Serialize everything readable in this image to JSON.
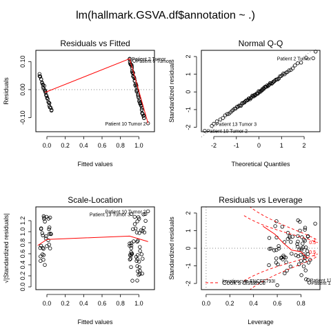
{
  "figure_title": "lm(hallmark.GSVA.df$annotation ~ .)",
  "colors": {
    "points": "#000000",
    "smooth": "#ff0000",
    "ref": "#808080",
    "cook": "#ff0000",
    "frame": "#000000"
  },
  "chart_data": [
    {
      "type": "scatter",
      "title": "Residuals vs Fitted",
      "xlabel": "Fitted values",
      "ylabel": "Residuals",
      "xlim": [
        -0.12,
        1.17
      ],
      "ylim": [
        -0.15,
        0.14
      ],
      "xticks": [
        0.0,
        0.2,
        0.4,
        0.6,
        0.8,
        1.0
      ],
      "xtick_labels": [
        "0.0",
        "0.2",
        "0.4",
        "0.6",
        "0.8",
        "1.0"
      ],
      "yticks": [
        -0.1,
        0.0,
        0.1
      ],
      "ytick_labels": [
        "-0.10",
        "0.00",
        "0.10"
      ],
      "ref_line": {
        "axis": "y",
        "value": 0
      },
      "smooth": [
        [
          -0.02,
          -0.01
        ],
        [
          0.9,
          0.11
        ],
        [
          1.1,
          -0.12
        ]
      ],
      "clusters": [
        {
          "x0": -0.08,
          "x1": 0.05,
          "y0": 0.055,
          "y1": -0.075,
          "n": 32
        },
        {
          "x0": 0.9,
          "x1": 1.06,
          "y0": 0.105,
          "y1": -0.105,
          "n": 50
        }
      ],
      "extra_points": [
        [
          0.9,
          0.11
        ],
        [
          1.1,
          -0.12
        ],
        [
          0.95,
          0.103
        ]
      ],
      "annotations": [
        {
          "text": "Patient 2 Tumor",
          "x": 0.9,
          "y": 0.11,
          "side": "right"
        },
        {
          "text": "Patient 6 Tumor",
          "x": 0.95,
          "y": 0.103,
          "side": "right"
        },
        {
          "text": "Patient 10 Tumor 2",
          "x": 1.1,
          "y": -0.12,
          "side": "left"
        }
      ]
    },
    {
      "type": "scatter",
      "title": "Normal Q-Q",
      "xlabel": "Theoretical Quantiles",
      "ylabel": "Standardized residuals",
      "xlim": [
        -2.55,
        2.7
      ],
      "ylim": [
        -2.25,
        2.35
      ],
      "xticks": [
        -2,
        -1,
        0,
        1,
        2
      ],
      "xtick_labels": [
        "-2",
        "-1",
        "0",
        "1",
        "2"
      ],
      "yticks": [
        -2,
        -1,
        0,
        1,
        2
      ],
      "ytick_labels": [
        "-2",
        "-1",
        "0",
        "1",
        "2"
      ],
      "ref_line": {
        "axis": "diag"
      },
      "qq": {
        "n": 82,
        "extremes": [
          [
            2.4,
            1.9
          ],
          [
            -2.4,
            -2.2
          ],
          [
            -2.0,
            -1.8
          ]
        ]
      },
      "annotations": [
        {
          "text": "Patient 2 Tumor",
          "x": 2.4,
          "y": 1.9,
          "side": "left"
        },
        {
          "text": "Patient 13 Tumor 3",
          "x": -2.0,
          "y": -1.8,
          "side": "right"
        },
        {
          "text": "Patient 10 Tumor 2",
          "x": -2.4,
          "y": -2.2,
          "side": "right"
        }
      ]
    },
    {
      "type": "scatter",
      "title": "Scale-Location",
      "xlabel": "Fitted values",
      "ylabel": "√|Standardized residuals|",
      "xlim": [
        -0.12,
        1.17
      ],
      "ylim": [
        -0.05,
        1.45
      ],
      "xticks": [
        0.0,
        0.2,
        0.4,
        0.6,
        0.8,
        1.0
      ],
      "xtick_labels": [
        "0.0",
        "0.2",
        "0.4",
        "0.6",
        "0.8",
        "1.0"
      ],
      "yticks": [
        0.0,
        0.2,
        0.4,
        0.6,
        0.8,
        1.0,
        1.2
      ],
      "ytick_labels": [
        "0.0",
        "0.2",
        "0.4",
        "0.6",
        "0.8",
        "1.0",
        "1.2"
      ],
      "smooth": [
        [
          -0.1,
          0.75
        ],
        [
          0.0,
          0.86
        ],
        [
          0.9,
          0.92
        ],
        [
          1.1,
          0.82
        ]
      ],
      "clusters": [
        {
          "x0": -0.08,
          "x1": 0.05,
          "ymin": 0.25,
          "ymax": 1.3,
          "n": 32
        },
        {
          "x0": 0.9,
          "x1": 1.08,
          "ymin": 0.1,
          "ymax": 1.32,
          "n": 50
        }
      ],
      "extra_points": [
        [
          1.1,
          1.37
        ],
        [
          1.07,
          1.32
        ],
        [
          0.92,
          1.32
        ]
      ],
      "annotations": [
        {
          "text": "Patient 10 Tumor 2",
          "x": 1.1,
          "y": 1.37,
          "side": "left"
        },
        {
          "text": "Patient 13 Tumor 3",
          "x": 0.93,
          "y": 1.32,
          "side": "left"
        }
      ]
    },
    {
      "type": "scatter",
      "title": "Residuals vs Leverage",
      "xlabel": "Leverage",
      "ylabel": "Standardized residuals",
      "xlim": [
        -0.04,
        0.96
      ],
      "ylim": [
        -2.35,
        2.35
      ],
      "xticks": [
        0.0,
        0.2,
        0.4,
        0.6,
        0.8
      ],
      "xtick_labels": [
        "0.0",
        "0.2",
        "0.4",
        "0.6",
        "0.8"
      ],
      "yticks": [
        -2,
        -1,
        0,
        1,
        2
      ],
      "ytick_labels": [
        "-2",
        "-1",
        "0",
        "1",
        "2"
      ],
      "ref_line": {
        "axis": "both",
        "value": 0
      },
      "smooth": [
        [
          0.48,
          1.25
        ],
        [
          0.58,
          0.8
        ],
        [
          0.65,
          0.3
        ],
        [
          0.72,
          -0.1
        ],
        [
          0.8,
          -0.2
        ],
        [
          0.86,
          -0.6
        ]
      ],
      "cloud": {
        "x0": 0.5,
        "x1": 0.88,
        "n": 70
      },
      "extra_points": [
        [
          0.6,
          -2.1
        ],
        [
          0.86,
          -1.8
        ],
        [
          0.87,
          -1.95
        ],
        [
          0.92,
          1.4
        ]
      ],
      "cook_contours": [
        {
          "level": 0.5,
          "label": "0.5"
        },
        {
          "level": 1.0,
          "label": "1"
        }
      ],
      "legend": "Cook's distance",
      "legend_position": "bottom-left",
      "annotations": [
        {
          "text": "keratinocyte ENCFF793I",
          "x": 0.6,
          "y": -1.85,
          "side": "left"
        },
        {
          "text": "Patient 13 Tumor 3",
          "x": 0.86,
          "y": -1.8,
          "side": "right"
        },
        {
          "text": "Patient 13 Tumor 1",
          "x": 0.87,
          "y": -1.95,
          "side": "right"
        }
      ]
    }
  ]
}
